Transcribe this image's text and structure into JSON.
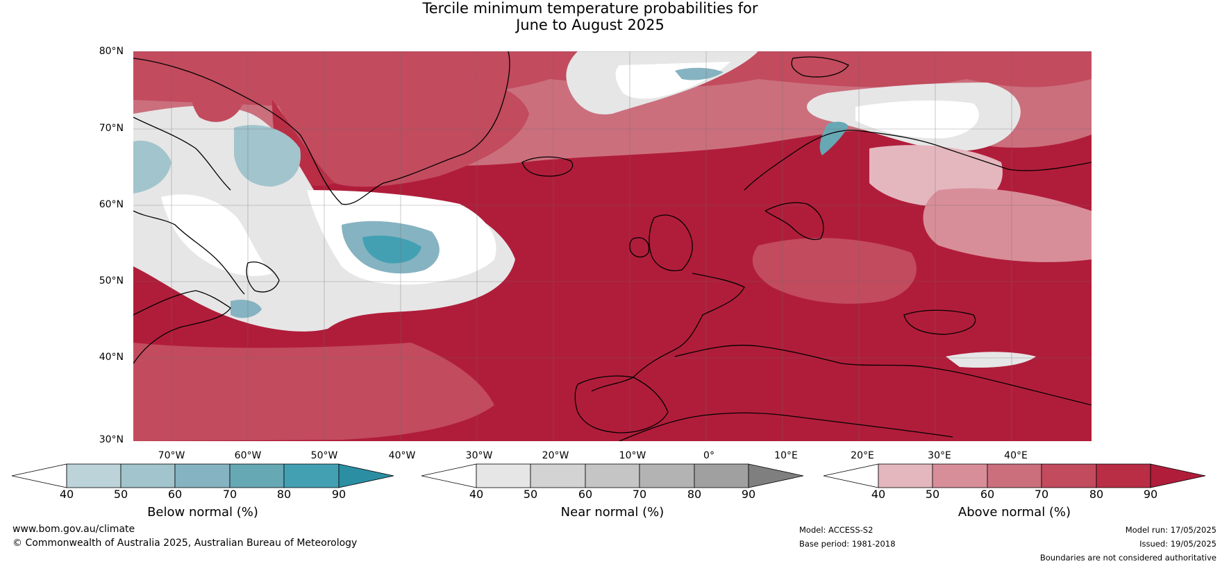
{
  "title": {
    "line1": "Tercile minimum temperature probabilities for",
    "line2": "June to August 2025"
  },
  "map": {
    "lat_labels": [
      "80°N",
      "70°N",
      "60°N",
      "50°N",
      "40°N",
      "30°N"
    ],
    "lon_labels": [
      "70°W",
      "60°W",
      "50°W",
      "40°W",
      "30°W",
      "20°W",
      "10°W",
      "0°",
      "10°E",
      "20°E",
      "30°E",
      "40°E"
    ],
    "dominant_color": "#b01d3a"
  },
  "colorbars": [
    {
      "name": "Below normal (%)",
      "ticks": [
        "40",
        "50",
        "60",
        "70",
        "80",
        "90"
      ],
      "under_color": "#ffffff",
      "colors": [
        "#bcd3d9",
        "#a2c4cc",
        "#86b3c1",
        "#67a8b5",
        "#43a0b3"
      ],
      "over_color": "#2b8ea2"
    },
    {
      "name": "Near normal (%)",
      "ticks": [
        "40",
        "50",
        "60",
        "70",
        "80",
        "90"
      ],
      "under_color": "#ffffff",
      "colors": [
        "#e6e6e6",
        "#d3d3d3",
        "#c5c5c5",
        "#b3b3b3",
        "#a0a0a0"
      ],
      "over_color": "#7f7f7f"
    },
    {
      "name": "Above normal (%)",
      "ticks": [
        "40",
        "50",
        "60",
        "70",
        "80",
        "90"
      ],
      "under_color": "#ffffff",
      "colors": [
        "#e4b7bf",
        "#d88e99",
        "#cb6f7d",
        "#c24b5e",
        "#b92e45"
      ],
      "over_color": "#b01d3a"
    }
  ],
  "footer": {
    "website": "www.bom.gov.au/climate",
    "copyright": "© Commonwealth of Australia 2025, Australian Bureau of Meteorology",
    "model": "Model: ACCESS-S2",
    "base_period": "Base period: 1981-2018",
    "model_run": "Model run: 17/05/2025",
    "issued": "Issued: 19/05/2025",
    "disclaimer": "Boundaries are not considered authoritative"
  }
}
